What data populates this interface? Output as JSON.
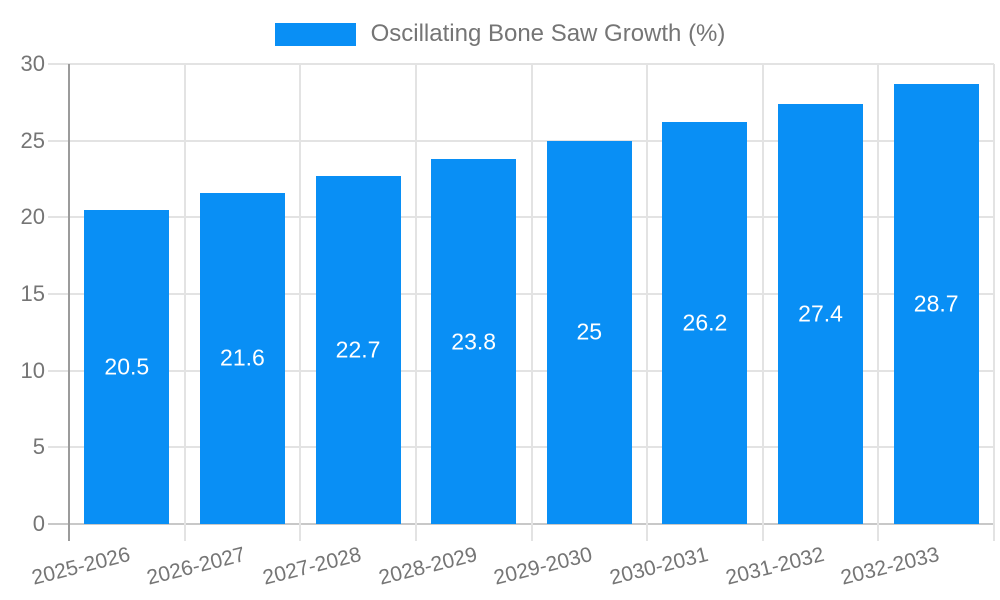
{
  "chart_data": {
    "type": "bar",
    "title": "Oscillating Bone Saw Growth (%)",
    "legend_position": "top",
    "categories": [
      "2025-2026",
      "2026-2027",
      "2027-2028",
      "2028-2029",
      "2029-2030",
      "2030-2031",
      "2031-2032",
      "2032-2033"
    ],
    "values": [
      20.5,
      21.6,
      22.7,
      23.8,
      25,
      26.2,
      27.4,
      28.7
    ],
    "value_labels": [
      "20.5",
      "21.6",
      "22.7",
      "23.8",
      "25",
      "26.2",
      "27.4",
      "28.7"
    ],
    "xlabel": "",
    "ylabel": "",
    "ylim": [
      0,
      30
    ],
    "yticks": [
      0,
      5,
      10,
      15,
      20,
      25,
      30
    ],
    "grid": true
  },
  "colors": {
    "bar": "#098ff5",
    "value_label": "#ffffff",
    "grid_line": "#e3e3e3",
    "baseline": "#c8c8c8",
    "axis_line": "#9b9b9b",
    "tick_line": "#dcdcdc",
    "text": "#757575",
    "background": "#ffffff"
  }
}
